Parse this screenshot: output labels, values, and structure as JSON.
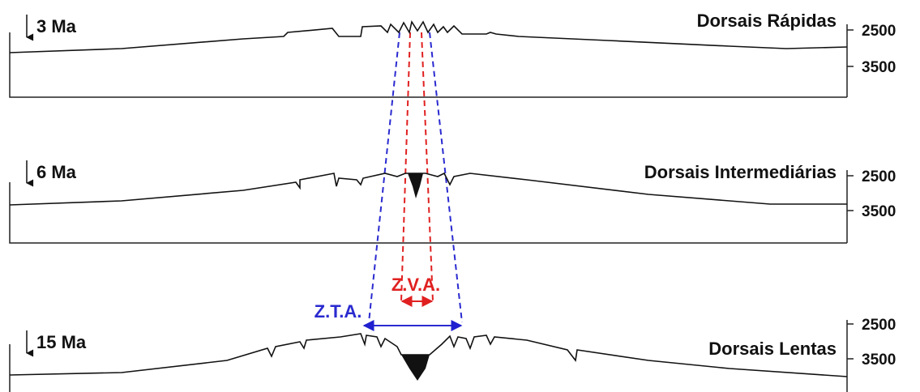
{
  "panels": [
    {
      "age": "3 Ma",
      "title": "Dorsais Rápidas",
      "ticks": [
        "2500",
        "3500"
      ]
    },
    {
      "age": "6 Ma",
      "title": "Dorsais Intermediárias",
      "ticks": [
        "2500",
        "3500"
      ]
    },
    {
      "age": "15 Ma",
      "title": "Dorsais Lentas",
      "ticks": [
        "2500",
        "3500"
      ]
    }
  ],
  "annotations": {
    "zva": "Z.V.A.",
    "zta": "Z.T.A."
  }
}
